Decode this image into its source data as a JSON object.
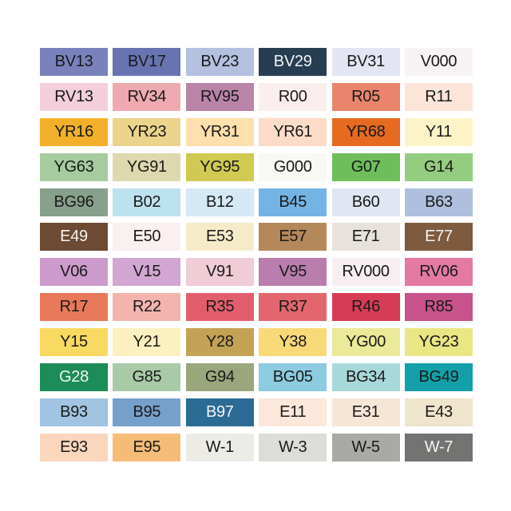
{
  "swatches": [
    {
      "code": "BV13",
      "color": "#7a82bd",
      "text": "dark"
    },
    {
      "code": "BV17",
      "color": "#6874b1",
      "text": "dark"
    },
    {
      "code": "BV23",
      "color": "#b3c0df",
      "text": "dark"
    },
    {
      "code": "BV29",
      "color": "#263d52",
      "text": "light"
    },
    {
      "code": "BV31",
      "color": "#e3e6f2",
      "text": "dark"
    },
    {
      "code": "V000",
      "color": "#f7f2f4",
      "text": "dark"
    },
    {
      "code": "RV13",
      "color": "#f3cfd9",
      "text": "dark"
    },
    {
      "code": "RV34",
      "color": "#eeaab0",
      "text": "dark"
    },
    {
      "code": "RV95",
      "color": "#b984a8",
      "text": "dark"
    },
    {
      "code": "R00",
      "color": "#fbeeee",
      "text": "dark"
    },
    {
      "code": "R05",
      "color": "#e9856d",
      "text": "dark"
    },
    {
      "code": "R11",
      "color": "#fbe4d8",
      "text": "dark"
    },
    {
      "code": "YR16",
      "color": "#f2b02a",
      "text": "dark"
    },
    {
      "code": "YR23",
      "color": "#ecd48c",
      "text": "dark"
    },
    {
      "code": "YR31",
      "color": "#fde0ae",
      "text": "dark"
    },
    {
      "code": "YR61",
      "color": "#fcdcc8",
      "text": "dark"
    },
    {
      "code": "YR68",
      "color": "#e66a20",
      "text": "dark"
    },
    {
      "code": "Y11",
      "color": "#fcf3c6",
      "text": "dark"
    },
    {
      "code": "YG63",
      "color": "#a6cb9e",
      "text": "dark"
    },
    {
      "code": "YG91",
      "color": "#ded8ae",
      "text": "dark"
    },
    {
      "code": "YG95",
      "color": "#d0ca52",
      "text": "dark"
    },
    {
      "code": "G000",
      "color": "#f8f9f3",
      "text": "dark"
    },
    {
      "code": "G07",
      "color": "#6ebe5c",
      "text": "dark"
    },
    {
      "code": "G14",
      "color": "#94cc80",
      "text": "dark"
    },
    {
      "code": "BG96",
      "color": "#87a08c",
      "text": "dark"
    },
    {
      "code": "B02",
      "color": "#bde2ef",
      "text": "dark"
    },
    {
      "code": "B12",
      "color": "#d5e8f5",
      "text": "dark"
    },
    {
      "code": "B45",
      "color": "#74b4e4",
      "text": "dark"
    },
    {
      "code": "B60",
      "color": "#e0e6f2",
      "text": "dark"
    },
    {
      "code": "B63",
      "color": "#aec0dd",
      "text": "dark"
    },
    {
      "code": "E49",
      "color": "#6c4a33",
      "text": "light"
    },
    {
      "code": "E50",
      "color": "#faf0f0",
      "text": "dark"
    },
    {
      "code": "E53",
      "color": "#f6ebc8",
      "text": "dark"
    },
    {
      "code": "E57",
      "color": "#b4885a",
      "text": "dark"
    },
    {
      "code": "E71",
      "color": "#e8e2dc",
      "text": "dark"
    },
    {
      "code": "E77",
      "color": "#7e5a3e",
      "text": "light"
    },
    {
      "code": "V06",
      "color": "#cc9acb",
      "text": "dark"
    },
    {
      "code": "V15",
      "color": "#d2a6d2",
      "text": "dark"
    },
    {
      "code": "V91",
      "color": "#f0ccd6",
      "text": "dark"
    },
    {
      "code": "V95",
      "color": "#b97eae",
      "text": "dark"
    },
    {
      "code": "RV000",
      "color": "#f6eef2",
      "text": "dark"
    },
    {
      "code": "RV06",
      "color": "#e47aa2",
      "text": "dark"
    },
    {
      "code": "R17",
      "color": "#e8795a",
      "text": "dark"
    },
    {
      "code": "R22",
      "color": "#f4b4ae",
      "text": "dark"
    },
    {
      "code": "R35",
      "color": "#e35e6c",
      "text": "dark"
    },
    {
      "code": "R37",
      "color": "#e3666e",
      "text": "dark"
    },
    {
      "code": "R46",
      "color": "#d63c55",
      "text": "dark"
    },
    {
      "code": "R85",
      "color": "#c8528a",
      "text": "dark"
    },
    {
      "code": "Y15",
      "color": "#f8da62",
      "text": "dark"
    },
    {
      "code": "Y21",
      "color": "#fdf0c0",
      "text": "dark"
    },
    {
      "code": "Y28",
      "color": "#c4a255",
      "text": "dark"
    },
    {
      "code": "Y38",
      "color": "#f8d978",
      "text": "dark"
    },
    {
      "code": "YG00",
      "color": "#eaea98",
      "text": "dark"
    },
    {
      "code": "YG23",
      "color": "#e9e684",
      "text": "dark"
    },
    {
      "code": "G28",
      "color": "#1c8c58",
      "text": "light"
    },
    {
      "code": "G85",
      "color": "#a9caa7",
      "text": "dark"
    },
    {
      "code": "G94",
      "color": "#9aa67c",
      "text": "dark"
    },
    {
      "code": "BG05",
      "color": "#8ccbe0",
      "text": "dark"
    },
    {
      "code": "BG34",
      "color": "#a8d9da",
      "text": "dark"
    },
    {
      "code": "BG49",
      "color": "#13a0a8",
      "text": "dark"
    },
    {
      "code": "B93",
      "color": "#a0c4e2",
      "text": "dark"
    },
    {
      "code": "B95",
      "color": "#76a0cc",
      "text": "dark"
    },
    {
      "code": "B97",
      "color": "#2c6b94",
      "text": "light"
    },
    {
      "code": "E11",
      "color": "#fce7db",
      "text": "dark"
    },
    {
      "code": "E31",
      "color": "#f6e6d6",
      "text": "dark"
    },
    {
      "code": "E43",
      "color": "#efe4cc",
      "text": "dark"
    },
    {
      "code": "E93",
      "color": "#f9d6bc",
      "text": "dark"
    },
    {
      "code": "E95",
      "color": "#f5bc78",
      "text": "dark"
    },
    {
      "code": "W-1",
      "color": "#ecebe6",
      "text": "dark"
    },
    {
      "code": "W-3",
      "color": "#dcdcd8",
      "text": "dark"
    },
    {
      "code": "W-5",
      "color": "#a9a9a6",
      "text": "dark"
    },
    {
      "code": "W-7",
      "color": "#737371",
      "text": "light"
    }
  ]
}
